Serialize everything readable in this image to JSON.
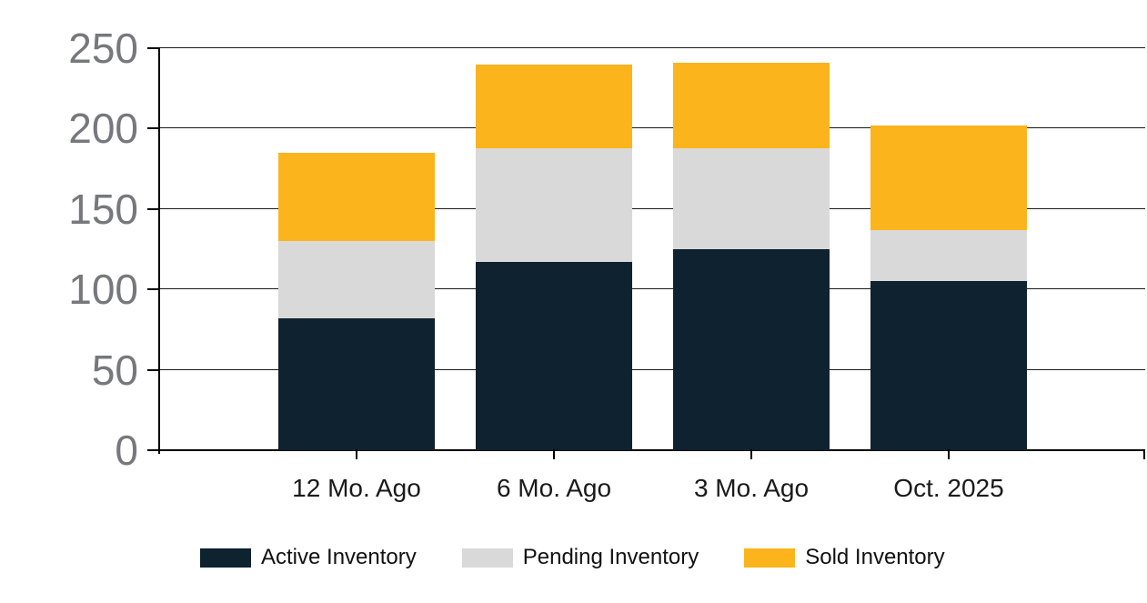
{
  "chart_data": {
    "type": "bar",
    "stacked": true,
    "title": "",
    "categories": [
      "12 Mo. Ago",
      "6 Mo. Ago",
      "3 Mo. Ago",
      "Oct. 2025"
    ],
    "series": [
      {
        "name": "Active Inventory",
        "color": "#0e2230",
        "values": [
          82,
          117,
          125,
          105
        ]
      },
      {
        "name": "Pending Inventory",
        "color": "#d9d9d9",
        "values": [
          48,
          71,
          63,
          32
        ]
      },
      {
        "name": "Sold Inventory",
        "color": "#fbb41c",
        "values": [
          55,
          52,
          53,
          65
        ]
      }
    ],
    "stack_totals": [
      185,
      240,
      241,
      202
    ],
    "xlabel": "",
    "ylabel": "",
    "ylim": [
      0,
      250
    ],
    "yticks": [
      0,
      50,
      100,
      150,
      200,
      250
    ],
    "grid": true,
    "legend_position": "bottom",
    "style": {
      "y_axis_label_color": "#77787b",
      "x_axis_label_color": "#1a1a1a",
      "legend_text_color": "#111111",
      "grid_color": "#1a1a1a",
      "axis_color": "#000000",
      "background": "#ffffff"
    }
  }
}
